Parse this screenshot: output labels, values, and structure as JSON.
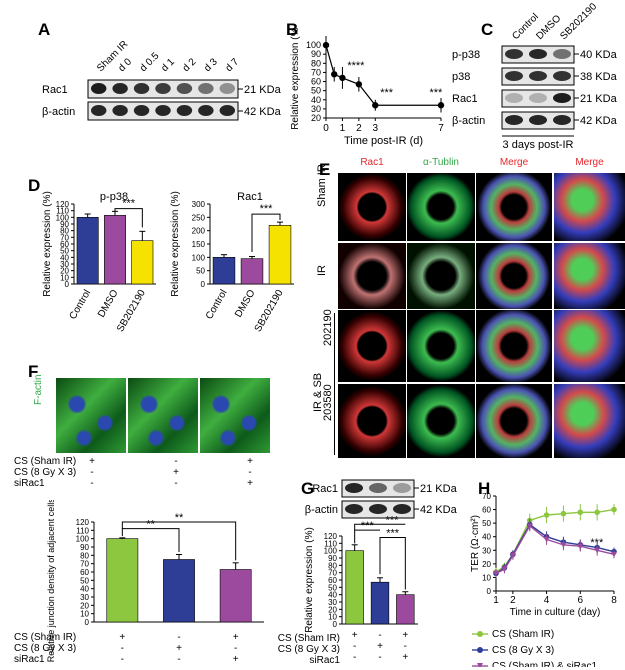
{
  "panels": {
    "A": "A",
    "B": "B",
    "C": "C",
    "D": "D",
    "E": "E",
    "F": "F",
    "G": "G",
    "H": "H"
  },
  "panelA": {
    "lanes": [
      "Sham IR",
      "d 0",
      "d 0.5",
      "d 1",
      "d 2",
      "d 3",
      "d 7"
    ],
    "rows": [
      {
        "name": "Rac1",
        "size": "21 KDa"
      },
      {
        "name": "β-actin",
        "size": "42 KDa"
      }
    ],
    "rac1_intensity": [
      0.95,
      0.9,
      0.85,
      0.8,
      0.7,
      0.55,
      0.4
    ]
  },
  "panelB_chart": {
    "type": "line",
    "x": [
      0,
      0.5,
      1,
      2,
      3,
      7
    ],
    "values": [
      100,
      68,
      64,
      57,
      34,
      34
    ],
    "err": [
      6,
      8,
      12,
      8,
      6,
      8
    ],
    "xticks": [
      0,
      1,
      2,
      3,
      7
    ],
    "yticks": [
      20,
      30,
      40,
      50,
      60,
      70,
      80,
      90,
      100
    ],
    "ylim": [
      20,
      110
    ],
    "xlabel": "Time post-IR (d)",
    "ylabel": "Relative expression (%)",
    "sig": [
      "****",
      "***",
      "***"
    ]
  },
  "panelC": {
    "lanes": [
      "Control",
      "DMSO",
      "SB202190"
    ],
    "rows": [
      {
        "name": "p-p38",
        "size": "40 KDa",
        "intensity": [
          0.85,
          0.9,
          0.55
        ]
      },
      {
        "name": "p38",
        "size": "38 KDa",
        "intensity": [
          0.85,
          0.85,
          0.85
        ]
      },
      {
        "name": "Rac1",
        "size": "21 KDa",
        "intensity": [
          0.25,
          0.25,
          0.95
        ]
      },
      {
        "name": "β-actin",
        "size": "42 KDa",
        "intensity": [
          0.9,
          0.9,
          0.9
        ]
      }
    ],
    "caption": "3 days post-IR"
  },
  "panelD_chart": [
    {
      "type": "bar",
      "title": "p-p38",
      "categories": [
        "Control",
        "DMSO",
        "SB202190"
      ],
      "values": [
        100,
        103,
        65
      ],
      "err": [
        5,
        6,
        14
      ],
      "colors": [
        "#2e3d96",
        "#9b4a9d",
        "#f6e200"
      ],
      "ylim": [
        0,
        120
      ],
      "yticks": [
        0,
        10,
        20,
        30,
        40,
        50,
        60,
        70,
        80,
        90,
        100,
        110,
        120
      ],
      "ylabel": "Relative expression (%)",
      "sig": "***"
    },
    {
      "type": "bar",
      "title": "Rac1",
      "categories": [
        "Control",
        "DMSO",
        "SB202190"
      ],
      "values": [
        100,
        95,
        220
      ],
      "err": [
        10,
        8,
        12
      ],
      "colors": [
        "#2e3d96",
        "#9b4a9d",
        "#f6e200"
      ],
      "ylim": [
        0,
        300
      ],
      "yticks": [
        0,
        50,
        100,
        150,
        200,
        250,
        300
      ],
      "ylabel": "Relative expression (%)",
      "sig": "***"
    }
  ],
  "panelE": {
    "columns": [
      "Rac1",
      "α-Tublin",
      "Merge",
      "Merge"
    ],
    "column_colors": [
      "#e8262b",
      "#35a84a",
      "#e8262b",
      "#e8262b"
    ],
    "rows": [
      "Sham IR",
      "IR",
      "202190",
      "203580"
    ],
    "group_label": "IR & SB"
  },
  "panelF": {
    "label": "F-actin",
    "conditions": [
      {
        "name": "CS (Sham IR)",
        "signs": [
          "+",
          "-",
          "+"
        ]
      },
      {
        "name": "CS (8 Gy X 3)",
        "signs": [
          "-",
          "+",
          "-"
        ]
      },
      {
        "name": "siRac1",
        "signs": [
          "-",
          "-",
          "+"
        ]
      }
    ]
  },
  "panelF_chart": {
    "type": "bar",
    "categories": [
      "CS (Sham IR)",
      "CS (8 Gy X 3)",
      "siRac1"
    ],
    "values": [
      100,
      75,
      63
    ],
    "err": [
      1,
      6,
      8
    ],
    "colors": [
      "#8dc63f",
      "#2e3d96",
      "#9b4a9d"
    ],
    "ylim": [
      0,
      120
    ],
    "yticks": [
      0,
      10,
      20,
      30,
      40,
      50,
      60,
      70,
      80,
      90,
      100,
      110,
      120
    ],
    "ylabel": "Relative junction density of adjacent cells (%)",
    "sig": [
      "**",
      "**"
    ],
    "signs": [
      [
        "+",
        "-",
        "+"
      ],
      [
        "-",
        "+",
        "-"
      ],
      [
        "-",
        "-",
        "+"
      ]
    ],
    "cond_labels": [
      "CS (Sham IR)",
      "CS (8 Gy X 3)",
      "siRac1"
    ]
  },
  "panelG": {
    "rows": [
      {
        "name": "Rac1",
        "size": "21 KDa",
        "intensity": [
          0.9,
          0.6,
          0.35
        ]
      },
      {
        "name": "β-actin",
        "size": "42 KDa",
        "intensity": [
          0.9,
          0.9,
          0.9
        ]
      }
    ]
  },
  "panelG_chart": {
    "type": "bar",
    "categories": [
      "CS (Sham IR)",
      "CS (8 Gy X 3)",
      "siRac1"
    ],
    "values": [
      100,
      57,
      40
    ],
    "err": [
      8,
      6,
      4
    ],
    "colors": [
      "#8dc63f",
      "#2e3d96",
      "#9b4a9d"
    ],
    "ylim": [
      0,
      120
    ],
    "yticks": [
      0,
      10,
      20,
      30,
      40,
      50,
      60,
      70,
      80,
      90,
      100,
      110,
      120
    ],
    "ylabel": "Relative expression (%)",
    "sig": [
      "***",
      "***",
      "***"
    ],
    "signs": [
      [
        "+",
        "-",
        "+"
      ],
      [
        "-",
        "+",
        "-"
      ],
      [
        "-",
        "-",
        "+"
      ]
    ],
    "cond_labels": [
      "CS (Sham IR)",
      "CS (8 Gy X 3)",
      "siRac1"
    ]
  },
  "panelH_chart": {
    "type": "line",
    "x": [
      1,
      1.5,
      2,
      3,
      4,
      5,
      6,
      7,
      8
    ],
    "series": [
      {
        "name": "CS (Sham IR)",
        "color": "#8dc63f",
        "values": [
          14,
          18,
          27,
          52,
          56,
          57,
          58,
          58,
          60
        ],
        "err": [
          3,
          3,
          3,
          5,
          6,
          6,
          6,
          6,
          4
        ]
      },
      {
        "name": "CS (8 Gy X 3)",
        "color": "#2e3d96",
        "values": [
          13,
          17,
          27,
          49,
          40,
          36,
          34,
          32,
          29
        ],
        "err": [
          3,
          3,
          3,
          4,
          4,
          4,
          4,
          4,
          3
        ]
      },
      {
        "name": "CS (Sham IR) & siRac1",
        "color": "#9b4a9d",
        "values": [
          13,
          16,
          26,
          48,
          38,
          34,
          33,
          30,
          27
        ],
        "err": [
          3,
          3,
          3,
          4,
          4,
          4,
          4,
          4,
          3
        ]
      }
    ],
    "xticks": [
      1,
      2,
      4,
      6,
      8
    ],
    "yticks": [
      0,
      10,
      20,
      30,
      40,
      50,
      60,
      70
    ],
    "ylim": [
      0,
      70
    ],
    "xlabel": "Time in culture (day)",
    "ylabel": "TER (Ω·cm²)",
    "sig": "***"
  }
}
